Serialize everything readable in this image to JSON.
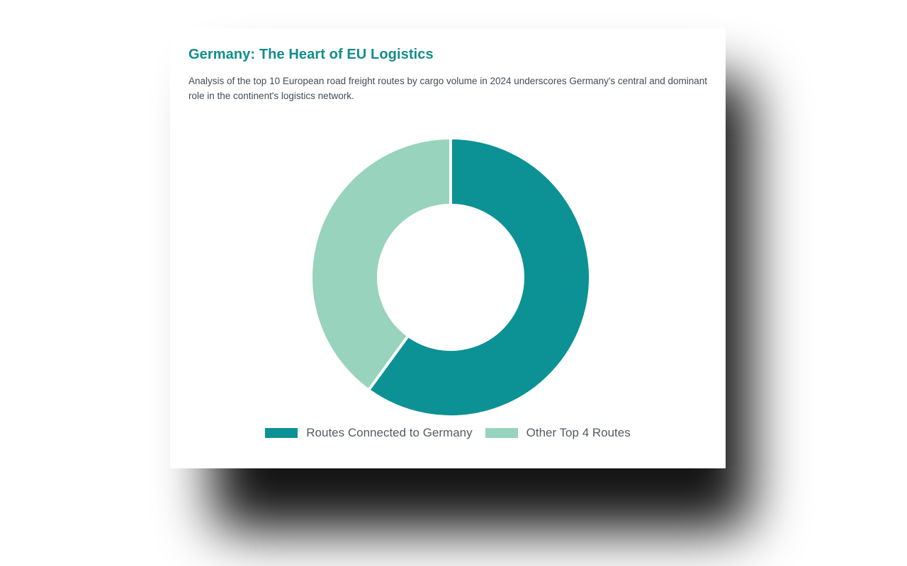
{
  "card": {
    "title": "Germany: The Heart of EU Logistics",
    "description": "Analysis of the top 10 European road freight routes by cargo volume in 2024 underscores Germany's central and dominant role in the continent's logistics network."
  },
  "colors": {
    "primary": "#0c9294",
    "secondary": "#97d3bd",
    "title": "#138c8c"
  },
  "chart_data": {
    "type": "pie",
    "variant": "doughnut",
    "title": "",
    "legend_position": "bottom",
    "categories": [
      "Routes Connected to Germany",
      "Other Top 4 Routes"
    ],
    "values": [
      6,
      4
    ],
    "series": [
      {
        "name": "Routes Connected to Germany",
        "value": 6,
        "color": "#0c9294"
      },
      {
        "name": "Other Top 4 Routes",
        "value": 4,
        "color": "#97d3bd"
      }
    ]
  }
}
